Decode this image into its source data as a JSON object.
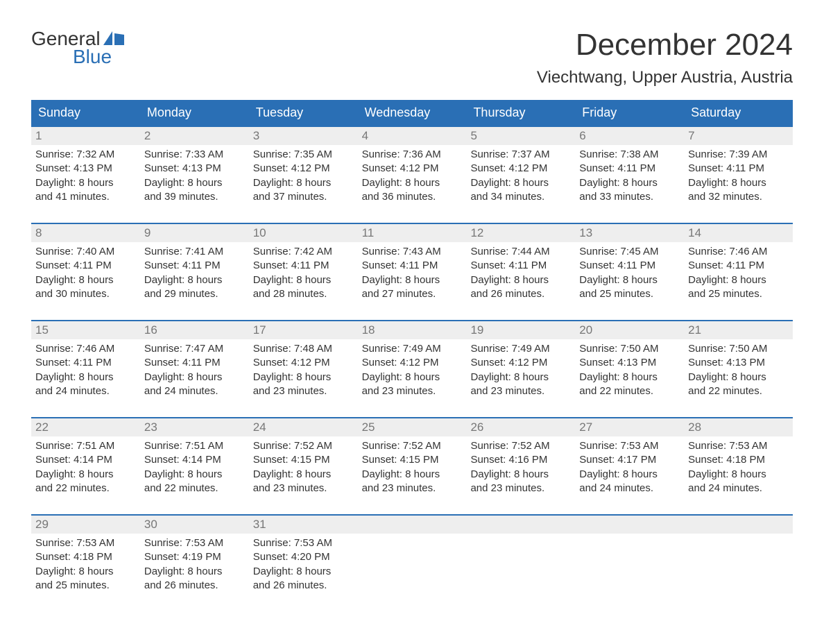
{
  "logo": {
    "top": "General",
    "bottom": "Blue",
    "icon_color": "#2a6fb5"
  },
  "title": "December 2024",
  "location": "Viechtwang, Upper Austria, Austria",
  "colors": {
    "header_bg": "#2a6fb5",
    "header_text": "#ffffff",
    "week_border": "#2a6fb5",
    "daynum_bg": "#eeeeee",
    "daynum_text": "#777777",
    "body_text": "#333333",
    "page_bg": "#ffffff"
  },
  "fonts": {
    "title_size": 44,
    "location_size": 24,
    "header_size": 18,
    "daynum_size": 17,
    "body_size": 15
  },
  "day_names": [
    "Sunday",
    "Monday",
    "Tuesday",
    "Wednesday",
    "Thursday",
    "Friday",
    "Saturday"
  ],
  "weeks": [
    [
      {
        "n": "1",
        "sunrise": "Sunrise: 7:32 AM",
        "sunset": "Sunset: 4:13 PM",
        "d1": "Daylight: 8 hours",
        "d2": "and 41 minutes."
      },
      {
        "n": "2",
        "sunrise": "Sunrise: 7:33 AM",
        "sunset": "Sunset: 4:13 PM",
        "d1": "Daylight: 8 hours",
        "d2": "and 39 minutes."
      },
      {
        "n": "3",
        "sunrise": "Sunrise: 7:35 AM",
        "sunset": "Sunset: 4:12 PM",
        "d1": "Daylight: 8 hours",
        "d2": "and 37 minutes."
      },
      {
        "n": "4",
        "sunrise": "Sunrise: 7:36 AM",
        "sunset": "Sunset: 4:12 PM",
        "d1": "Daylight: 8 hours",
        "d2": "and 36 minutes."
      },
      {
        "n": "5",
        "sunrise": "Sunrise: 7:37 AM",
        "sunset": "Sunset: 4:12 PM",
        "d1": "Daylight: 8 hours",
        "d2": "and 34 minutes."
      },
      {
        "n": "6",
        "sunrise": "Sunrise: 7:38 AM",
        "sunset": "Sunset: 4:11 PM",
        "d1": "Daylight: 8 hours",
        "d2": "and 33 minutes."
      },
      {
        "n": "7",
        "sunrise": "Sunrise: 7:39 AM",
        "sunset": "Sunset: 4:11 PM",
        "d1": "Daylight: 8 hours",
        "d2": "and 32 minutes."
      }
    ],
    [
      {
        "n": "8",
        "sunrise": "Sunrise: 7:40 AM",
        "sunset": "Sunset: 4:11 PM",
        "d1": "Daylight: 8 hours",
        "d2": "and 30 minutes."
      },
      {
        "n": "9",
        "sunrise": "Sunrise: 7:41 AM",
        "sunset": "Sunset: 4:11 PM",
        "d1": "Daylight: 8 hours",
        "d2": "and 29 minutes."
      },
      {
        "n": "10",
        "sunrise": "Sunrise: 7:42 AM",
        "sunset": "Sunset: 4:11 PM",
        "d1": "Daylight: 8 hours",
        "d2": "and 28 minutes."
      },
      {
        "n": "11",
        "sunrise": "Sunrise: 7:43 AM",
        "sunset": "Sunset: 4:11 PM",
        "d1": "Daylight: 8 hours",
        "d2": "and 27 minutes."
      },
      {
        "n": "12",
        "sunrise": "Sunrise: 7:44 AM",
        "sunset": "Sunset: 4:11 PM",
        "d1": "Daylight: 8 hours",
        "d2": "and 26 minutes."
      },
      {
        "n": "13",
        "sunrise": "Sunrise: 7:45 AM",
        "sunset": "Sunset: 4:11 PM",
        "d1": "Daylight: 8 hours",
        "d2": "and 25 minutes."
      },
      {
        "n": "14",
        "sunrise": "Sunrise: 7:46 AM",
        "sunset": "Sunset: 4:11 PM",
        "d1": "Daylight: 8 hours",
        "d2": "and 25 minutes."
      }
    ],
    [
      {
        "n": "15",
        "sunrise": "Sunrise: 7:46 AM",
        "sunset": "Sunset: 4:11 PM",
        "d1": "Daylight: 8 hours",
        "d2": "and 24 minutes."
      },
      {
        "n": "16",
        "sunrise": "Sunrise: 7:47 AM",
        "sunset": "Sunset: 4:11 PM",
        "d1": "Daylight: 8 hours",
        "d2": "and 24 minutes."
      },
      {
        "n": "17",
        "sunrise": "Sunrise: 7:48 AM",
        "sunset": "Sunset: 4:12 PM",
        "d1": "Daylight: 8 hours",
        "d2": "and 23 minutes."
      },
      {
        "n": "18",
        "sunrise": "Sunrise: 7:49 AM",
        "sunset": "Sunset: 4:12 PM",
        "d1": "Daylight: 8 hours",
        "d2": "and 23 minutes."
      },
      {
        "n": "19",
        "sunrise": "Sunrise: 7:49 AM",
        "sunset": "Sunset: 4:12 PM",
        "d1": "Daylight: 8 hours",
        "d2": "and 23 minutes."
      },
      {
        "n": "20",
        "sunrise": "Sunrise: 7:50 AM",
        "sunset": "Sunset: 4:13 PM",
        "d1": "Daylight: 8 hours",
        "d2": "and 22 minutes."
      },
      {
        "n": "21",
        "sunrise": "Sunrise: 7:50 AM",
        "sunset": "Sunset: 4:13 PM",
        "d1": "Daylight: 8 hours",
        "d2": "and 22 minutes."
      }
    ],
    [
      {
        "n": "22",
        "sunrise": "Sunrise: 7:51 AM",
        "sunset": "Sunset: 4:14 PM",
        "d1": "Daylight: 8 hours",
        "d2": "and 22 minutes."
      },
      {
        "n": "23",
        "sunrise": "Sunrise: 7:51 AM",
        "sunset": "Sunset: 4:14 PM",
        "d1": "Daylight: 8 hours",
        "d2": "and 22 minutes."
      },
      {
        "n": "24",
        "sunrise": "Sunrise: 7:52 AM",
        "sunset": "Sunset: 4:15 PM",
        "d1": "Daylight: 8 hours",
        "d2": "and 23 minutes."
      },
      {
        "n": "25",
        "sunrise": "Sunrise: 7:52 AM",
        "sunset": "Sunset: 4:15 PM",
        "d1": "Daylight: 8 hours",
        "d2": "and 23 minutes."
      },
      {
        "n": "26",
        "sunrise": "Sunrise: 7:52 AM",
        "sunset": "Sunset: 4:16 PM",
        "d1": "Daylight: 8 hours",
        "d2": "and 23 minutes."
      },
      {
        "n": "27",
        "sunrise": "Sunrise: 7:53 AM",
        "sunset": "Sunset: 4:17 PM",
        "d1": "Daylight: 8 hours",
        "d2": "and 24 minutes."
      },
      {
        "n": "28",
        "sunrise": "Sunrise: 7:53 AM",
        "sunset": "Sunset: 4:18 PM",
        "d1": "Daylight: 8 hours",
        "d2": "and 24 minutes."
      }
    ],
    [
      {
        "n": "29",
        "sunrise": "Sunrise: 7:53 AM",
        "sunset": "Sunset: 4:18 PM",
        "d1": "Daylight: 8 hours",
        "d2": "and 25 minutes."
      },
      {
        "n": "30",
        "sunrise": "Sunrise: 7:53 AM",
        "sunset": "Sunset: 4:19 PM",
        "d1": "Daylight: 8 hours",
        "d2": "and 26 minutes."
      },
      {
        "n": "31",
        "sunrise": "Sunrise: 7:53 AM",
        "sunset": "Sunset: 4:20 PM",
        "d1": "Daylight: 8 hours",
        "d2": "and 26 minutes."
      },
      {
        "n": "",
        "sunrise": "",
        "sunset": "",
        "d1": "",
        "d2": ""
      },
      {
        "n": "",
        "sunrise": "",
        "sunset": "",
        "d1": "",
        "d2": ""
      },
      {
        "n": "",
        "sunrise": "",
        "sunset": "",
        "d1": "",
        "d2": ""
      },
      {
        "n": "",
        "sunrise": "",
        "sunset": "",
        "d1": "",
        "d2": ""
      }
    ]
  ]
}
